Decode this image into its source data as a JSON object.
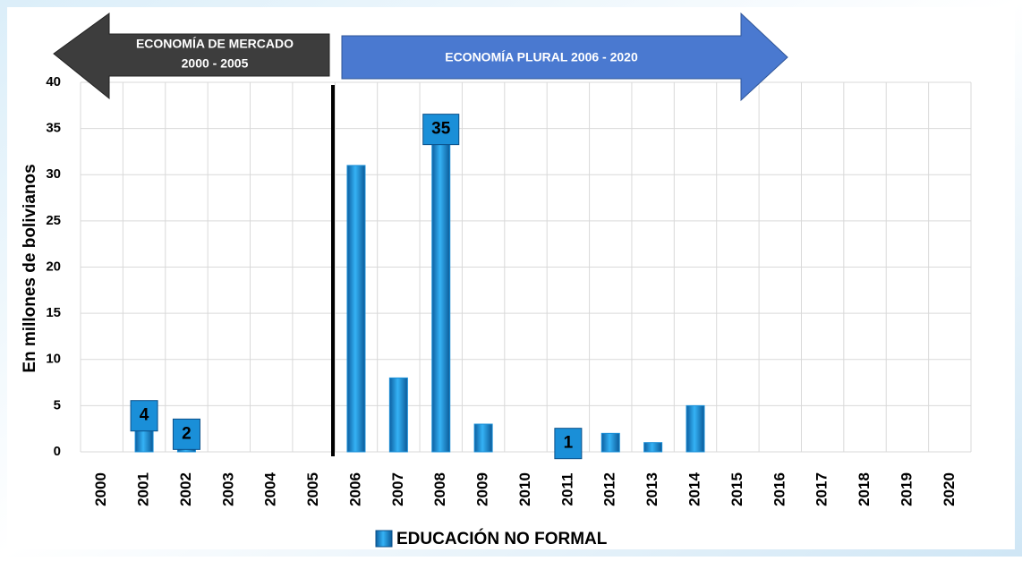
{
  "chart_data": {
    "type": "bar",
    "y_label": "En millones de bolivianos",
    "annotations": [
      "ECONOMÍA DE MERCADO",
      "2000 - 2005",
      "ECONOMÍA PLURAL 2006  - 2020"
    ],
    "categories": [
      "2000",
      "2001",
      "2002",
      "2003",
      "2004",
      "2005",
      "2006",
      "2007",
      "2008",
      "2009",
      "2010",
      "2011",
      "2012",
      "2013",
      "2014",
      "2015",
      "2016",
      "2017",
      "2018",
      "2019",
      "2020"
    ],
    "series": [
      {
        "name": "EDUCACIÓN NO FORMAL",
        "color": "#1a8fd8",
        "values": [
          null,
          4,
          2,
          null,
          null,
          null,
          31,
          8,
          35,
          3,
          null,
          1,
          2,
          1,
          5,
          null,
          null,
          null,
          null,
          null,
          null
        ],
        "value_labels": [
          null,
          "4",
          "2",
          null,
          null,
          null,
          null,
          null,
          "35",
          null,
          null,
          "1",
          null,
          null,
          null,
          null,
          null,
          null,
          null,
          null,
          null
        ]
      }
    ],
    "ylim": [
      0,
      40
    ],
    "yticks": [
      0,
      5,
      10,
      15,
      20,
      25,
      30,
      35,
      40
    ],
    "grid": true
  }
}
